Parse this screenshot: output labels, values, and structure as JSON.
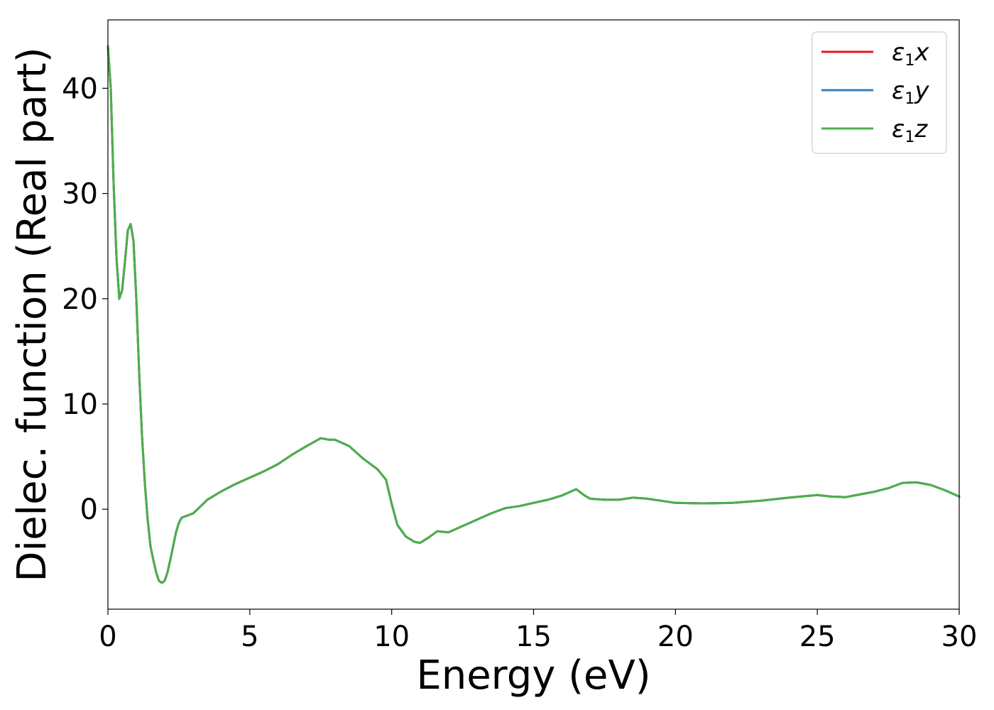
{
  "chart_data": {
    "type": "line",
    "xlabel": "Energy (eV)",
    "ylabel": "Dielec. function (Real part)",
    "xlim": [
      0,
      30
    ],
    "ylim": [
      -9.5,
      46.5
    ],
    "xticks": [
      0,
      5,
      10,
      15,
      20,
      25,
      30
    ],
    "yticks": [
      0,
      10,
      20,
      30,
      40
    ],
    "grid": false,
    "legend_position": "top-right",
    "colors": {
      "x": "#e41a1c",
      "y": "#377eb8",
      "z": "#4daf4a"
    },
    "series": [
      {
        "name": "ε1x",
        "legend_base": "ε",
        "legend_sub": "1",
        "legend_var": "x",
        "color": "#e41a1c",
        "points": [
          [
            0,
            44.0
          ],
          [
            0.1,
            40.0
          ],
          [
            0.2,
            31.0
          ],
          [
            0.3,
            24.0
          ],
          [
            0.4,
            20.0
          ],
          [
            0.5,
            20.8
          ],
          [
            0.6,
            23.5
          ],
          [
            0.7,
            26.5
          ],
          [
            0.8,
            27.1
          ],
          [
            0.9,
            25.5
          ],
          [
            1.0,
            20.0
          ],
          [
            1.1,
            13.0
          ],
          [
            1.2,
            7.0
          ],
          [
            1.3,
            2.5
          ],
          [
            1.4,
            -1.0
          ],
          [
            1.5,
            -3.5
          ],
          [
            1.6,
            -4.8
          ],
          [
            1.7,
            -6.0
          ],
          [
            1.8,
            -6.8
          ],
          [
            1.9,
            -7.0
          ],
          [
            2.0,
            -6.8
          ],
          [
            2.1,
            -6.0
          ],
          [
            2.2,
            -4.8
          ],
          [
            2.3,
            -3.5
          ],
          [
            2.4,
            -2.2
          ],
          [
            2.5,
            -1.3
          ],
          [
            2.6,
            -0.8
          ],
          [
            2.8,
            -0.6
          ],
          [
            3.0,
            -0.4
          ],
          [
            3.2,
            0.1
          ],
          [
            3.5,
            0.9
          ],
          [
            4.0,
            1.7
          ],
          [
            4.5,
            2.4
          ],
          [
            5.0,
            3.0
          ],
          [
            5.5,
            3.6
          ],
          [
            6.0,
            4.3
          ],
          [
            6.5,
            5.2
          ],
          [
            7.0,
            6.0
          ],
          [
            7.5,
            6.75
          ],
          [
            7.8,
            6.6
          ],
          [
            8.0,
            6.6
          ],
          [
            8.5,
            6.0
          ],
          [
            9.0,
            4.8
          ],
          [
            9.5,
            3.8
          ],
          [
            9.8,
            2.8
          ],
          [
            10.0,
            0.5
          ],
          [
            10.2,
            -1.5
          ],
          [
            10.5,
            -2.6
          ],
          [
            10.8,
            -3.1
          ],
          [
            11.0,
            -3.2
          ],
          [
            11.3,
            -2.7
          ],
          [
            11.6,
            -2.1
          ],
          [
            12.0,
            -2.2
          ],
          [
            12.5,
            -1.6
          ],
          [
            13.0,
            -1.0
          ],
          [
            13.5,
            -0.4
          ],
          [
            14.0,
            0.1
          ],
          [
            14.5,
            0.3
          ],
          [
            15.0,
            0.6
          ],
          [
            15.5,
            0.9
          ],
          [
            16.0,
            1.3
          ],
          [
            16.5,
            1.9
          ],
          [
            16.8,
            1.3
          ],
          [
            17.0,
            1.0
          ],
          [
            17.5,
            0.9
          ],
          [
            18.0,
            0.9
          ],
          [
            18.5,
            1.1
          ],
          [
            19.0,
            1.0
          ],
          [
            19.5,
            0.8
          ],
          [
            20.0,
            0.6
          ],
          [
            21.0,
            0.55
          ],
          [
            22.0,
            0.6
          ],
          [
            23.0,
            0.8
          ],
          [
            24.0,
            1.1
          ],
          [
            25.0,
            1.35
          ],
          [
            25.5,
            1.2
          ],
          [
            26.0,
            1.15
          ],
          [
            26.5,
            1.4
          ],
          [
            27.0,
            1.65
          ],
          [
            27.5,
            2.0
          ],
          [
            28.0,
            2.5
          ],
          [
            28.5,
            2.55
          ],
          [
            29.0,
            2.3
          ],
          [
            29.5,
            1.8
          ],
          [
            30.0,
            1.2
          ]
        ]
      },
      {
        "name": "ε1y",
        "legend_base": "ε",
        "legend_sub": "1",
        "legend_var": "y",
        "color": "#377eb8",
        "points": [
          [
            0,
            44.0
          ],
          [
            0.1,
            40.0
          ],
          [
            0.2,
            31.0
          ],
          [
            0.3,
            24.0
          ],
          [
            0.4,
            20.0
          ],
          [
            0.5,
            20.8
          ],
          [
            0.6,
            23.5
          ],
          [
            0.7,
            26.5
          ],
          [
            0.8,
            27.1
          ],
          [
            0.9,
            25.5
          ],
          [
            1.0,
            20.0
          ],
          [
            1.1,
            13.0
          ],
          [
            1.2,
            7.0
          ],
          [
            1.3,
            2.5
          ],
          [
            1.4,
            -1.0
          ],
          [
            1.5,
            -3.5
          ],
          [
            1.6,
            -4.8
          ],
          [
            1.7,
            -6.0
          ],
          [
            1.8,
            -6.8
          ],
          [
            1.9,
            -7.0
          ],
          [
            2.0,
            -6.8
          ],
          [
            2.1,
            -6.0
          ],
          [
            2.2,
            -4.8
          ],
          [
            2.3,
            -3.5
          ],
          [
            2.4,
            -2.2
          ],
          [
            2.5,
            -1.3
          ],
          [
            2.6,
            -0.8
          ],
          [
            2.8,
            -0.6
          ],
          [
            3.0,
            -0.4
          ],
          [
            3.2,
            0.1
          ],
          [
            3.5,
            0.9
          ],
          [
            4.0,
            1.7
          ],
          [
            4.5,
            2.4
          ],
          [
            5.0,
            3.0
          ],
          [
            5.5,
            3.6
          ],
          [
            6.0,
            4.3
          ],
          [
            6.5,
            5.2
          ],
          [
            7.0,
            6.0
          ],
          [
            7.5,
            6.75
          ],
          [
            7.8,
            6.6
          ],
          [
            8.0,
            6.6
          ],
          [
            8.5,
            6.0
          ],
          [
            9.0,
            4.8
          ],
          [
            9.5,
            3.8
          ],
          [
            9.8,
            2.8
          ],
          [
            10.0,
            0.5
          ],
          [
            10.2,
            -1.5
          ],
          [
            10.5,
            -2.6
          ],
          [
            10.8,
            -3.1
          ],
          [
            11.0,
            -3.2
          ],
          [
            11.3,
            -2.7
          ],
          [
            11.6,
            -2.1
          ],
          [
            12.0,
            -2.2
          ],
          [
            12.5,
            -1.6
          ],
          [
            13.0,
            -1.0
          ],
          [
            13.5,
            -0.4
          ],
          [
            14.0,
            0.1
          ],
          [
            14.5,
            0.3
          ],
          [
            15.0,
            0.6
          ],
          [
            15.5,
            0.9
          ],
          [
            16.0,
            1.3
          ],
          [
            16.5,
            1.9
          ],
          [
            16.8,
            1.3
          ],
          [
            17.0,
            1.0
          ],
          [
            17.5,
            0.9
          ],
          [
            18.0,
            0.9
          ],
          [
            18.5,
            1.1
          ],
          [
            19.0,
            1.0
          ],
          [
            19.5,
            0.8
          ],
          [
            20.0,
            0.6
          ],
          [
            21.0,
            0.55
          ],
          [
            22.0,
            0.6
          ],
          [
            23.0,
            0.8
          ],
          [
            24.0,
            1.1
          ],
          [
            25.0,
            1.35
          ],
          [
            25.5,
            1.2
          ],
          [
            26.0,
            1.15
          ],
          [
            26.5,
            1.4
          ],
          [
            27.0,
            1.65
          ],
          [
            27.5,
            2.0
          ],
          [
            28.0,
            2.5
          ],
          [
            28.5,
            2.55
          ],
          [
            29.0,
            2.3
          ],
          [
            29.5,
            1.8
          ],
          [
            30.0,
            1.2
          ]
        ]
      },
      {
        "name": "ε1z",
        "legend_base": "ε",
        "legend_sub": "1",
        "legend_var": "z",
        "color": "#4daf4a",
        "points": [
          [
            0,
            44.0
          ],
          [
            0.1,
            40.0
          ],
          [
            0.2,
            31.0
          ],
          [
            0.3,
            24.0
          ],
          [
            0.4,
            20.0
          ],
          [
            0.5,
            20.8
          ],
          [
            0.6,
            23.5
          ],
          [
            0.7,
            26.5
          ],
          [
            0.8,
            27.1
          ],
          [
            0.9,
            25.5
          ],
          [
            1.0,
            20.0
          ],
          [
            1.1,
            13.0
          ],
          [
            1.2,
            7.0
          ],
          [
            1.3,
            2.5
          ],
          [
            1.4,
            -1.0
          ],
          [
            1.5,
            -3.5
          ],
          [
            1.6,
            -4.8
          ],
          [
            1.7,
            -6.0
          ],
          [
            1.8,
            -6.8
          ],
          [
            1.9,
            -7.0
          ],
          [
            2.0,
            -6.8
          ],
          [
            2.1,
            -6.0
          ],
          [
            2.2,
            -4.8
          ],
          [
            2.3,
            -3.5
          ],
          [
            2.4,
            -2.2
          ],
          [
            2.5,
            -1.3
          ],
          [
            2.6,
            -0.8
          ],
          [
            2.8,
            -0.6
          ],
          [
            3.0,
            -0.4
          ],
          [
            3.2,
            0.1
          ],
          [
            3.5,
            0.9
          ],
          [
            4.0,
            1.7
          ],
          [
            4.5,
            2.4
          ],
          [
            5.0,
            3.0
          ],
          [
            5.5,
            3.6
          ],
          [
            6.0,
            4.3
          ],
          [
            6.5,
            5.2
          ],
          [
            7.0,
            6.0
          ],
          [
            7.5,
            6.75
          ],
          [
            7.8,
            6.6
          ],
          [
            8.0,
            6.6
          ],
          [
            8.5,
            6.0
          ],
          [
            9.0,
            4.8
          ],
          [
            9.5,
            3.8
          ],
          [
            9.8,
            2.8
          ],
          [
            10.0,
            0.5
          ],
          [
            10.2,
            -1.5
          ],
          [
            10.5,
            -2.6
          ],
          [
            10.8,
            -3.1
          ],
          [
            11.0,
            -3.2
          ],
          [
            11.3,
            -2.7
          ],
          [
            11.6,
            -2.1
          ],
          [
            12.0,
            -2.2
          ],
          [
            12.5,
            -1.6
          ],
          [
            13.0,
            -1.0
          ],
          [
            13.5,
            -0.4
          ],
          [
            14.0,
            0.1
          ],
          [
            14.5,
            0.3
          ],
          [
            15.0,
            0.6
          ],
          [
            15.5,
            0.9
          ],
          [
            16.0,
            1.3
          ],
          [
            16.5,
            1.9
          ],
          [
            16.8,
            1.3
          ],
          [
            17.0,
            1.0
          ],
          [
            17.5,
            0.9
          ],
          [
            18.0,
            0.9
          ],
          [
            18.5,
            1.1
          ],
          [
            19.0,
            1.0
          ],
          [
            19.5,
            0.8
          ],
          [
            20.0,
            0.6
          ],
          [
            21.0,
            0.55
          ],
          [
            22.0,
            0.6
          ],
          [
            23.0,
            0.8
          ],
          [
            24.0,
            1.1
          ],
          [
            25.0,
            1.35
          ],
          [
            25.5,
            1.2
          ],
          [
            26.0,
            1.15
          ],
          [
            26.5,
            1.4
          ],
          [
            27.0,
            1.65
          ],
          [
            27.5,
            2.0
          ],
          [
            28.0,
            2.5
          ],
          [
            28.5,
            2.55
          ],
          [
            29.0,
            2.3
          ],
          [
            29.5,
            1.8
          ],
          [
            30.0,
            1.2
          ]
        ]
      }
    ]
  }
}
